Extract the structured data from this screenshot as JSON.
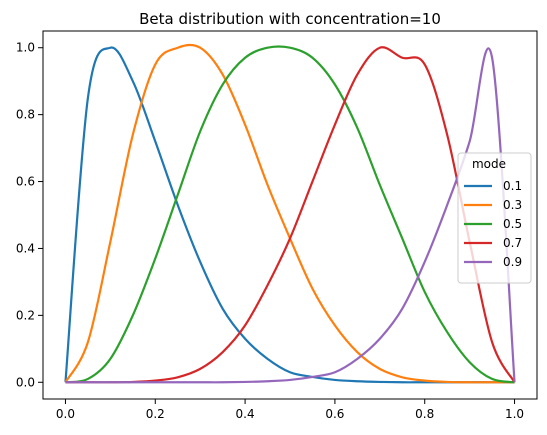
{
  "chart_data": {
    "type": "line",
    "title": "Beta distribution with concentration=10",
    "xlabel": "",
    "ylabel": "",
    "xlim": [
      -0.05,
      1.05
    ],
    "ylim": [
      -0.05,
      1.05
    ],
    "xticks": [
      "0.0",
      "0.2",
      "0.4",
      "0.6",
      "0.8",
      "1.0"
    ],
    "yticks": [
      "0.0",
      "0.2",
      "0.4",
      "0.6",
      "0.8",
      "1.0"
    ],
    "grid": false,
    "legend": {
      "title": "mode",
      "placement": "center-right"
    },
    "x": [
      0.0,
      0.05,
      0.1,
      0.15,
      0.2,
      0.25,
      0.3,
      0.35,
      0.4,
      0.45,
      0.5,
      0.55,
      0.6,
      0.65,
      0.7,
      0.75,
      0.8,
      0.85,
      0.9,
      0.95,
      1.0
    ],
    "series": [
      {
        "name": "0.1",
        "color": "#1f77b4",
        "values": [
          0.0,
          0.85,
          1.0,
          0.9,
          0.72,
          0.53,
          0.36,
          0.22,
          0.13,
          0.07,
          0.03,
          0.016,
          0.007,
          0.003,
          0.001,
          0.0,
          0.0,
          0.0,
          0.0,
          0.0,
          0.0
        ]
      },
      {
        "name": "0.3",
        "color": "#ff7f0e",
        "values": [
          0.0,
          0.12,
          0.42,
          0.74,
          0.95,
          1.0,
          1.0,
          0.92,
          0.77,
          0.59,
          0.43,
          0.28,
          0.17,
          0.09,
          0.04,
          0.015,
          0.005,
          0.001,
          0.0,
          0.0,
          0.0
        ]
      },
      {
        "name": "0.5",
        "color": "#2ca02c",
        "values": [
          0.0,
          0.01,
          0.07,
          0.2,
          0.37,
          0.56,
          0.75,
          0.89,
          0.97,
          1.0,
          1.0,
          0.97,
          0.89,
          0.76,
          0.59,
          0.43,
          0.27,
          0.15,
          0.06,
          0.01,
          0.0
        ]
      },
      {
        "name": "0.7",
        "color": "#d62728",
        "values": [
          0.0,
          0.0,
          0.0,
          0.001,
          0.005,
          0.015,
          0.04,
          0.09,
          0.17,
          0.29,
          0.43,
          0.6,
          0.77,
          0.92,
          1.0,
          0.97,
          0.95,
          0.74,
          0.42,
          0.12,
          0.0
        ]
      },
      {
        "name": "0.9",
        "color": "#9467bd",
        "values": [
          0.0,
          0.0,
          0.0,
          0.0,
          0.0,
          0.0,
          0.0,
          0.0,
          0.001,
          0.003,
          0.007,
          0.016,
          0.03,
          0.07,
          0.13,
          0.22,
          0.36,
          0.53,
          0.72,
          0.97,
          0.0
        ]
      }
    ]
  }
}
